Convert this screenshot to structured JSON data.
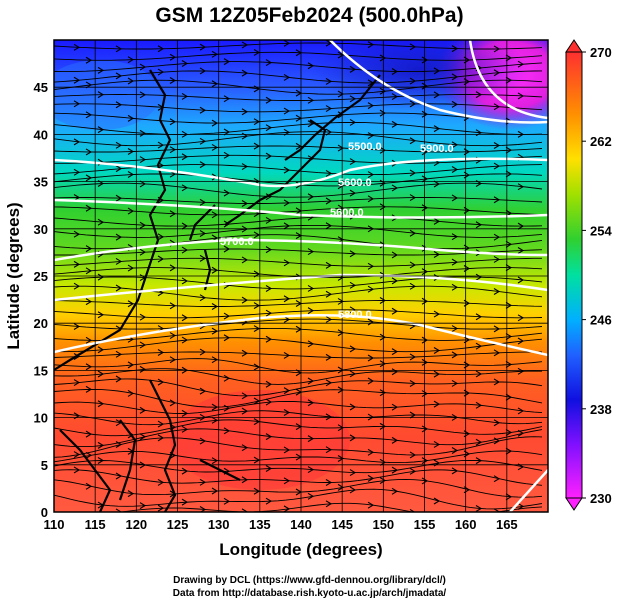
{
  "title": "GSM 12Z05Feb2024 (500.0hPa)",
  "x_axis": {
    "label": "Longitude (degrees)",
    "range": [
      110,
      170
    ],
    "ticks": [
      "110",
      "115",
      "120",
      "125",
      "130",
      "135",
      "140",
      "145",
      "150",
      "155",
      "160",
      "165"
    ]
  },
  "y_axis": {
    "label": "Latitude  (degrees)",
    "range": [
      0,
      50
    ],
    "ticks": [
      "0",
      "5",
      "10",
      "15",
      "20",
      "25",
      "30",
      "35",
      "40",
      "45"
    ]
  },
  "colorbar": {
    "labels": [
      "270",
      "262",
      "254",
      "246",
      "238",
      "230"
    ],
    "range": [
      230,
      270
    ],
    "colors": [
      "#ff00ff",
      "#2000ff",
      "#00c8ff",
      "#40e040",
      "#ffff00",
      "#ff8000",
      "#ff3030"
    ]
  },
  "contour_labels": [
    "5500.0",
    "5600.0",
    "5600.0",
    "5700.0",
    "5800.0",
    "5900.0"
  ],
  "credits": {
    "line1": "Drawing by DCL (https://www.gfd-dennou.org/library/dcl/)",
    "line2": "Data from http://database.rish.kyoto-u.ac.jp/arch/jmadata/"
  }
}
